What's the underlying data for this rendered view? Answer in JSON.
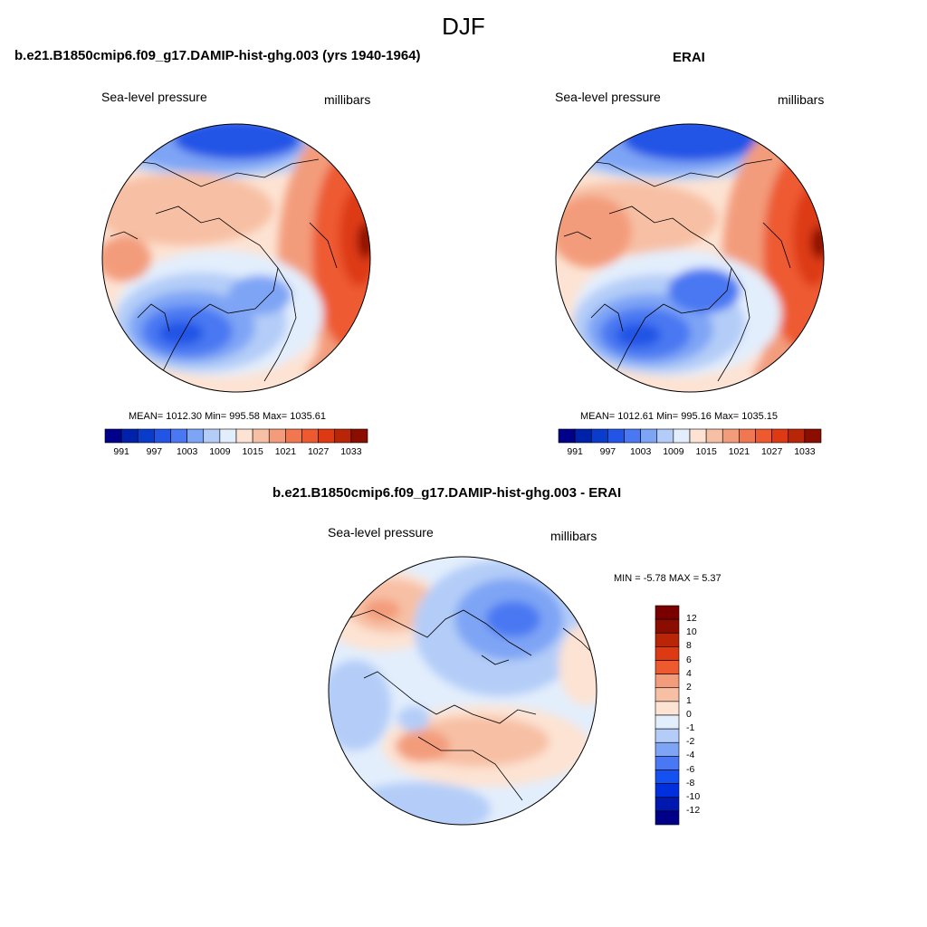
{
  "figure": {
    "season": "DJF"
  },
  "colors": {
    "sequential": [
      "#00008b",
      "#0022aa",
      "#0a3ccc",
      "#2255e6",
      "#4a78f2",
      "#7ea4f5",
      "#b4cdf8",
      "#e3eefc",
      "#fde3d3",
      "#f7c0a4",
      "#f39c7b",
      "#f0774f",
      "#ee5a30",
      "#dd3a13",
      "#b82507",
      "#8a0d00"
    ],
    "diverging": [
      "#000088",
      "#0018b0",
      "#0030dd",
      "#1550f0",
      "#4a78f2",
      "#7ea4f5",
      "#b4cdf8",
      "#e3eefc",
      "#fde3d3",
      "#f7c0a4",
      "#f39c7b",
      "#ee5a30",
      "#dd3a13",
      "#b82507",
      "#8a0d00"
    ]
  },
  "panels": [
    {
      "title": "b.e21.B1850cmip6.f09_g17.DAMIP-hist-ghg.003 (yrs 1940-1964)",
      "left_label": "Sea-level pressure",
      "right_label": "millibars",
      "stats": "MEAN= 1012.30  Min= 995.58  Max= 1035.61",
      "colorbar_ticks": [
        "991",
        "997",
        "1003",
        "1009",
        "1015",
        "1021",
        "1027",
        "1033"
      ]
    },
    {
      "title": "ERAI",
      "left_label": "Sea-level pressure",
      "right_label": "millibars",
      "stats": "MEAN= 1012.61  Min= 995.16  Max= 1035.15",
      "colorbar_ticks": [
        "991",
        "997",
        "1003",
        "1009",
        "1015",
        "1021",
        "1027",
        "1033"
      ]
    },
    {
      "title": "b.e21.B1850cmip6.f09_g17.DAMIP-hist-ghg.003 - ERAI",
      "left_label": "Sea-level pressure",
      "right_label": "millibars",
      "stats": "MIN =  -5.78 MAX =   5.37",
      "colorbar_ticks": [
        "12",
        "10",
        "8",
        "6",
        "4",
        "2",
        "1",
        "0",
        "-1",
        "-2",
        "-4",
        "-6",
        "-8",
        "-10",
        "-12"
      ]
    }
  ]
}
